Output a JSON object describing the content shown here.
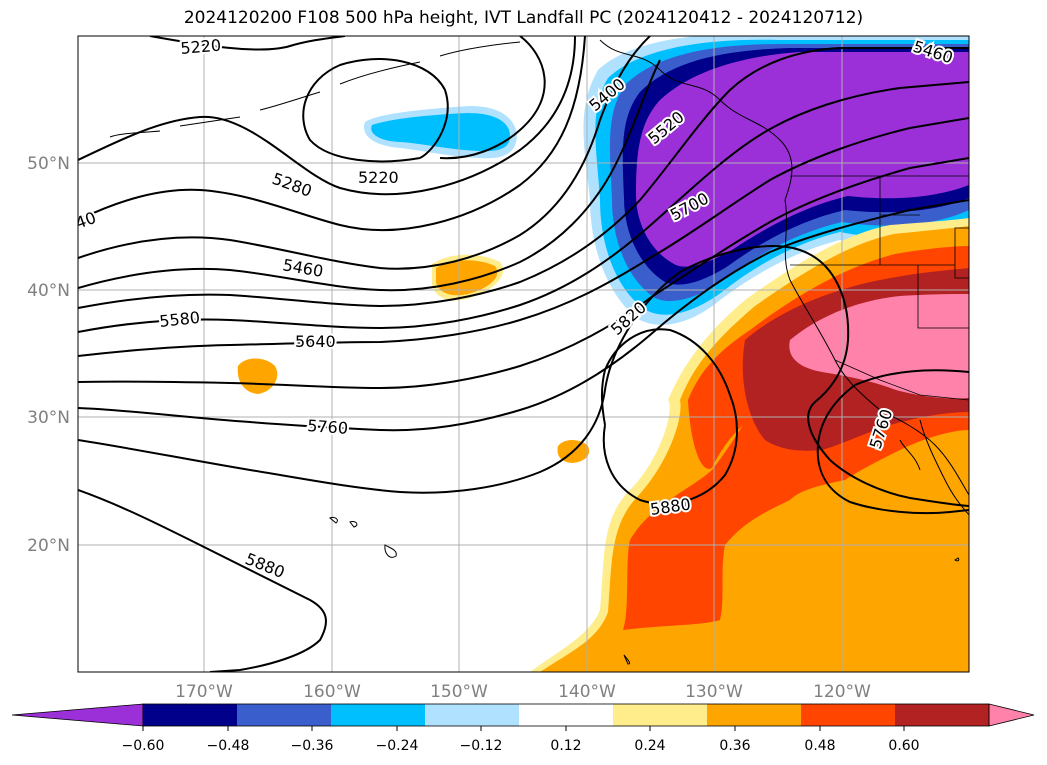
{
  "title": "2024120200 F108 500 hPa height, IVT Landfall PC (2024120412 - 2024120712)",
  "map": {
    "lon_ticks": [
      "170°W",
      "160°W",
      "150°W",
      "140°W",
      "130°W",
      "120°W"
    ],
    "lat_ticks": [
      "50°N",
      "40°N",
      "30°N",
      "20°N"
    ],
    "grid": true,
    "contour_labels": [
      "5220",
      "5220",
      "5280",
      "40",
      "5460",
      "5400",
      "5520",
      "5700",
      "5580",
      "5640",
      "5760",
      "5820",
      "5880",
      "5880",
      "5760",
      "5460"
    ]
  },
  "colorbar": {
    "colors": [
      "#9b30d9",
      "#00008b",
      "#3a5fcd",
      "#00bfff",
      "#b0e2ff",
      "#ffffff",
      "#ffec8b",
      "#ffa500",
      "#ff4500",
      "#b22222",
      "#ff82ab"
    ],
    "ticks": [
      "−0.60",
      "−0.48",
      "−0.36",
      "−0.24",
      "−0.12",
      "0.12",
      "0.24",
      "0.36",
      "0.48",
      "0.60"
    ]
  }
}
